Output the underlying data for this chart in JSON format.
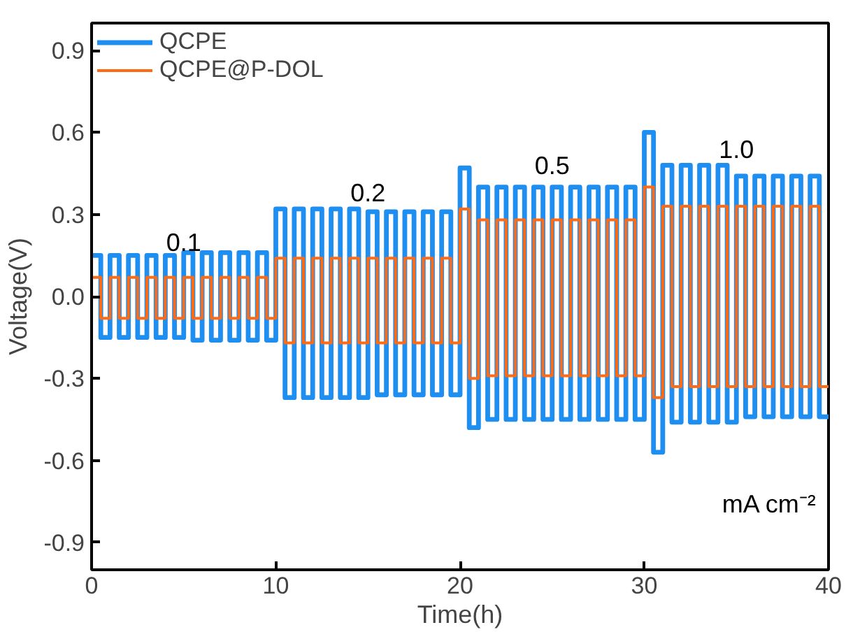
{
  "chart_data": {
    "type": "line",
    "xlabel": "Time(h)",
    "ylabel": "Voltage(V)",
    "xlim": [
      0,
      40
    ],
    "ylim": [
      -1.0,
      1.0
    ],
    "xticks": [
      0,
      10,
      20,
      30,
      40
    ],
    "yticks": [
      -0.9,
      -0.6,
      -0.3,
      {
        "value": 0,
        "label": "0.0"
      },
      0.3,
      0.6,
      0.9
    ],
    "grid": false,
    "legend": "top left",
    "line_style": "solid",
    "marker": "none",
    "annotations": [
      "0.1",
      "0.2",
      "0.5",
      "1.0",
      "mA cm⁻²"
    ],
    "x": [
      0,
      0.5,
      0.5,
      1,
      1,
      1.5,
      1.5,
      2,
      2,
      2.5,
      2.5,
      3,
      3,
      3.5,
      3.5,
      4,
      4,
      4.5,
      4.5,
      5,
      5,
      5.5,
      5.5,
      6,
      6,
      6.5,
      6.5,
      7,
      7,
      7.5,
      7.5,
      8,
      8,
      8.5,
      8.5,
      9,
      9,
      9.5,
      9.5,
      10,
      10,
      10.5,
      10.5,
      11,
      11,
      11.5,
      11.5,
      12,
      12,
      12.5,
      12.5,
      13,
      13,
      13.5,
      13.5,
      14,
      14,
      14.5,
      14.5,
      15,
      15,
      15.5,
      15.5,
      16,
      16,
      16.5,
      16.5,
      17,
      17,
      17.5,
      17.5,
      18,
      18,
      18.5,
      18.5,
      19,
      19,
      19.5,
      19.5,
      20,
      20,
      20.5,
      20.5,
      21,
      21,
      21.5,
      21.5,
      22,
      22,
      22.5,
      22.5,
      23,
      23,
      23.5,
      23.5,
      24,
      24,
      24.5,
      24.5,
      25,
      25,
      25.5,
      25.5,
      26,
      26,
      26.5,
      26.5,
      27,
      27,
      27.5,
      27.5,
      28,
      28,
      28.5,
      28.5,
      29,
      29,
      29.5,
      29.5,
      30,
      30,
      30.5,
      30.5,
      31,
      31,
      31.5,
      31.5,
      32,
      32,
      32.5,
      32.5,
      33,
      33,
      33.5,
      33.5,
      34,
      34,
      34.5,
      34.5,
      35,
      35,
      35.5,
      35.5,
      36,
      36,
      36.5,
      36.5,
      37,
      37,
      37.5,
      37.5,
      38,
      38,
      38.5,
      38.5,
      39,
      39,
      39.5,
      39.5,
      40
    ],
    "series": [
      {
        "name": "QCPE",
        "color": "#1f8ef1",
        "values": [
          0.15,
          0.15,
          -0.15,
          -0.15,
          0.15,
          0.15,
          -0.15,
          -0.15,
          0.15,
          0.15,
          -0.15,
          -0.15,
          0.15,
          0.15,
          -0.15,
          -0.15,
          0.15,
          0.15,
          -0.15,
          -0.15,
          0.16,
          0.16,
          -0.16,
          -0.16,
          0.16,
          0.16,
          -0.16,
          -0.16,
          0.16,
          0.16,
          -0.16,
          -0.16,
          0.16,
          0.16,
          -0.16,
          -0.16,
          0.16,
          0.16,
          -0.16,
          -0.16,
          0.32,
          0.32,
          -0.37,
          -0.37,
          0.32,
          0.32,
          -0.37,
          -0.37,
          0.32,
          0.32,
          -0.37,
          -0.37,
          0.32,
          0.32,
          -0.37,
          -0.37,
          0.32,
          0.32,
          -0.37,
          -0.37,
          0.31,
          0.31,
          -0.36,
          -0.36,
          0.31,
          0.31,
          -0.36,
          -0.36,
          0.31,
          0.31,
          -0.36,
          -0.36,
          0.31,
          0.31,
          -0.36,
          -0.36,
          0.31,
          0.31,
          -0.36,
          -0.36,
          0.47,
          0.47,
          -0.48,
          -0.48,
          0.4,
          0.4,
          -0.45,
          -0.45,
          0.4,
          0.4,
          -0.45,
          -0.45,
          0.4,
          0.4,
          -0.45,
          -0.45,
          0.4,
          0.4,
          -0.45,
          -0.45,
          0.4,
          0.4,
          -0.45,
          -0.45,
          0.4,
          0.4,
          -0.45,
          -0.45,
          0.4,
          0.4,
          -0.45,
          -0.45,
          0.4,
          0.4,
          -0.45,
          -0.45,
          0.4,
          0.4,
          -0.45,
          -0.45,
          0.6,
          0.6,
          -0.57,
          -0.57,
          0.48,
          0.48,
          -0.46,
          -0.46,
          0.48,
          0.48,
          -0.46,
          -0.46,
          0.48,
          0.48,
          -0.46,
          -0.46,
          0.48,
          0.48,
          -0.46,
          -0.46,
          0.44,
          0.44,
          -0.44,
          -0.44,
          0.44,
          0.44,
          -0.44,
          -0.44,
          0.44,
          0.44,
          -0.44,
          -0.44,
          0.44,
          0.44,
          -0.44,
          -0.44,
          0.44,
          0.44,
          -0.44,
          -0.44
        ]
      },
      {
        "name": "QCPE@P-DOL",
        "color": "#ff6a13",
        "values": [
          0.07,
          0.07,
          -0.08,
          -0.08,
          0.07,
          0.07,
          -0.08,
          -0.08,
          0.07,
          0.07,
          -0.08,
          -0.08,
          0.07,
          0.07,
          -0.08,
          -0.08,
          0.07,
          0.07,
          -0.08,
          -0.08,
          0.07,
          0.07,
          -0.08,
          -0.08,
          0.07,
          0.07,
          -0.08,
          -0.08,
          0.07,
          0.07,
          -0.08,
          -0.08,
          0.07,
          0.07,
          -0.08,
          -0.08,
          0.07,
          0.07,
          -0.08,
          -0.08,
          0.14,
          0.14,
          -0.17,
          -0.17,
          0.14,
          0.14,
          -0.17,
          -0.17,
          0.14,
          0.14,
          -0.17,
          -0.17,
          0.14,
          0.14,
          -0.17,
          -0.17,
          0.14,
          0.14,
          -0.17,
          -0.17,
          0.14,
          0.14,
          -0.17,
          -0.17,
          0.14,
          0.14,
          -0.17,
          -0.17,
          0.14,
          0.14,
          -0.17,
          -0.17,
          0.14,
          0.14,
          -0.17,
          -0.17,
          0.14,
          0.14,
          -0.17,
          -0.17,
          0.32,
          0.32,
          -0.3,
          -0.3,
          0.28,
          0.28,
          -0.29,
          -0.29,
          0.28,
          0.28,
          -0.29,
          -0.29,
          0.28,
          0.28,
          -0.29,
          -0.29,
          0.28,
          0.28,
          -0.29,
          -0.29,
          0.28,
          0.28,
          -0.29,
          -0.29,
          0.28,
          0.28,
          -0.29,
          -0.29,
          0.28,
          0.28,
          -0.29,
          -0.29,
          0.28,
          0.28,
          -0.29,
          -0.29,
          0.28,
          0.28,
          -0.29,
          -0.29,
          0.4,
          0.4,
          -0.37,
          -0.37,
          0.33,
          0.33,
          -0.33,
          -0.33,
          0.33,
          0.33,
          -0.33,
          -0.33,
          0.33,
          0.33,
          -0.33,
          -0.33,
          0.33,
          0.33,
          -0.33,
          -0.33,
          0.33,
          0.33,
          -0.33,
          -0.33,
          0.33,
          0.33,
          -0.33,
          -0.33,
          0.33,
          0.33,
          -0.33,
          -0.33,
          0.33,
          0.33,
          -0.33,
          -0.33,
          0.33,
          0.33,
          -0.33,
          -0.33
        ]
      }
    ]
  }
}
